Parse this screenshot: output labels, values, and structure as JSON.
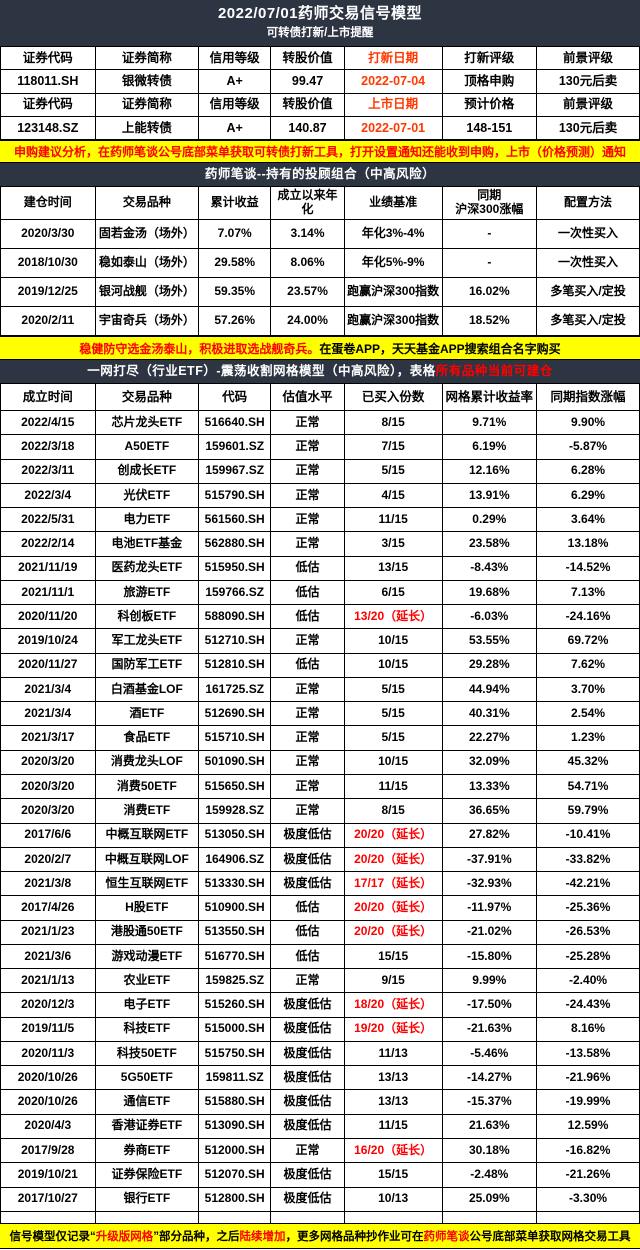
{
  "title_bar": {
    "title": "2022/07/01药师交易信号模型",
    "subtitle": "可转债打新/上市提醒"
  },
  "colors": {
    "dark_header_bg": "#2d3442",
    "banner_bg": "#ffff00",
    "accent_red": "#ff0000",
    "date_red": "#ff3a00"
  },
  "bond_table": {
    "rows": [
      [
        "证券代码",
        "证券简称",
        "信用等级",
        "转股价值",
        {
          "t": "打新日期",
          "c": "#ff3a00"
        },
        "打新评级",
        "前景评级"
      ],
      [
        "118011.SH",
        "银微转债",
        "A+",
        "99.47",
        {
          "t": "2022-07-04",
          "c": "#ff3a00"
        },
        "顶格申购",
        "130元后卖"
      ],
      [
        "证券代码",
        "证券简称",
        "信用等级",
        "转股价值",
        {
          "t": "上市日期",
          "c": "#ff3a00"
        },
        "预计价格",
        "前景评级"
      ],
      [
        "123148.SZ",
        "上能转债",
        "A+",
        "140.87",
        {
          "t": "2022-07-01",
          "c": "#ff3a00"
        },
        "148-151",
        "130元后卖"
      ]
    ]
  },
  "banner_subscribe": {
    "segments": [
      {
        "text": "申购建议分析，在药师笔谈公号底部菜单获取可转债打新工具，打开设置通知还能收到申购，上市（价格预测）通知",
        "color": "#ff0000"
      }
    ]
  },
  "portfolio_section": {
    "title": "药师笔谈--持有的投顾组合（中高风险）",
    "table": {
      "columns": [
        "建仓时间",
        "交易品种",
        "累计收益",
        "成立以来年化",
        "业绩基准",
        "同期\n沪深300涨幅",
        "配置方法"
      ],
      "rows": [
        [
          "2020/3/30",
          "固若金汤（场外）",
          "7.07%",
          "3.14%",
          "年化3%-4%",
          "-",
          "一次性买入"
        ],
        [
          "2018/10/30",
          "稳如泰山（场外）",
          "29.58%",
          "8.06%",
          "年化5%-9%",
          "-",
          "一次性买入"
        ],
        [
          "2019/12/25",
          "银河战舰（场外）",
          "59.35%",
          "23.57%",
          "跑赢沪深300指数",
          "16.02%",
          "多笔买入/定投"
        ],
        [
          "2020/2/11",
          "宇宙奇兵（场外）",
          "57.26%",
          "24.00%",
          "跑赢沪深300指数",
          "18.52%",
          "多笔买入/定投"
        ]
      ]
    }
  },
  "banner_portfolio": {
    "segments": [
      {
        "text": "稳健防守选金汤泰山，积极进取选战舰奇兵。",
        "color": "#ff0000"
      },
      {
        "text": "在蛋卷APP，天天基金APP搜索组合名字购买",
        "color": "#000000"
      }
    ]
  },
  "etf_section": {
    "title_segments": [
      {
        "text": "一网打尽（行业ETF）-震荡收割网格模型（中高风险），表格",
        "color": "#ffffff"
      },
      {
        "text": "所有品种当前可建仓",
        "color": "#ff0000"
      }
    ],
    "table": {
      "columns": [
        "成立时间",
        "交易品种",
        "代码",
        "估值水平",
        "已买入份数",
        "网格累计收益率",
        "同期指数涨幅"
      ],
      "rows": [
        [
          "2022/4/15",
          "芯片龙头ETF",
          "516640.SH",
          "正常",
          "8/15",
          "9.71%",
          "9.90%"
        ],
        [
          "2022/3/18",
          "A50ETF",
          "159601.SZ",
          "正常",
          "7/15",
          "6.19%",
          "-5.87%"
        ],
        [
          "2022/3/11",
          "创成长ETF",
          "159967.SZ",
          "正常",
          "5/15",
          "12.16%",
          "6.28%"
        ],
        [
          "2022/3/4",
          "光伏ETF",
          "515790.SH",
          "正常",
          "4/15",
          "13.91%",
          "6.29%"
        ],
        [
          "2022/5/31",
          "电力ETF",
          "561560.SH",
          "正常",
          "11/15",
          "0.29%",
          "3.64%"
        ],
        [
          "2022/2/14",
          "电池ETF基金",
          "562880.SH",
          "正常",
          "3/15",
          "23.58%",
          "13.18%"
        ],
        [
          "2021/11/19",
          "医药龙头ETF",
          "515950.SH",
          "低估",
          "13/15",
          "-8.43%",
          "-14.52%"
        ],
        [
          "2021/11/1",
          "旅游ETF",
          "159766.SZ",
          "低估",
          "6/15",
          "19.68%",
          "7.13%"
        ],
        [
          "2020/11/20",
          "科创板ETF",
          "588090.SH",
          "低估",
          {
            "t": "13/20（延长）",
            "c": "#ff0000"
          },
          "-6.03%",
          "-24.16%"
        ],
        [
          "2019/10/24",
          "军工龙头ETF",
          "512710.SH",
          "正常",
          "10/15",
          "53.55%",
          "69.72%"
        ],
        [
          "2020/11/27",
          "国防军工ETF",
          "512810.SH",
          "低估",
          "10/15",
          "29.28%",
          "7.62%"
        ],
        [
          "2021/3/4",
          "白酒基金LOF",
          "161725.SZ",
          "正常",
          "5/15",
          "44.94%",
          "3.70%"
        ],
        [
          "2021/3/4",
          "酒ETF",
          "512690.SH",
          "正常",
          "5/15",
          "40.31%",
          "2.54%"
        ],
        [
          "2021/3/17",
          "食品ETF",
          "515710.SH",
          "正常",
          "5/15",
          "22.27%",
          "1.23%"
        ],
        [
          "2020/3/20",
          "消费龙头LOF",
          "501090.SH",
          "正常",
          "10/15",
          "32.09%",
          "45.32%"
        ],
        [
          "2020/3/20",
          "消费50ETF",
          "515650.SH",
          "正常",
          "11/15",
          "13.33%",
          "54.71%"
        ],
        [
          "2020/3/20",
          "消费ETF",
          "159928.SZ",
          "正常",
          "8/15",
          "36.65%",
          "59.79%"
        ],
        [
          "2017/6/6",
          "中概互联网ETF",
          "513050.SH",
          "极度低估",
          {
            "t": "20/20（延长）",
            "c": "#ff0000"
          },
          "27.82%",
          "-10.41%"
        ],
        [
          "2020/2/7",
          "中概互联网LOF",
          "164906.SZ",
          "极度低估",
          {
            "t": "20/20（延长）",
            "c": "#ff0000"
          },
          "-37.91%",
          "-33.82%"
        ],
        [
          "2021/3/8",
          "恒生互联网ETF",
          "513330.SH",
          "极度低估",
          {
            "t": "17/17（延长）",
            "c": "#ff0000"
          },
          "-32.93%",
          "-42.21%"
        ],
        [
          "2017/4/26",
          "H股ETF",
          "510900.SH",
          "低估",
          {
            "t": "20/20（延长）",
            "c": "#ff0000"
          },
          "-11.97%",
          "-25.36%"
        ],
        [
          "2021/1/23",
          "港股通50ETF",
          "513550.SH",
          "低估",
          {
            "t": "20/20（延长）",
            "c": "#ff0000"
          },
          "-21.02%",
          "-26.53%"
        ],
        [
          "2021/3/6",
          "游戏动漫ETF",
          "516770.SH",
          "低估",
          "15/15",
          "-15.80%",
          "-25.28%"
        ],
        [
          "2021/1/13",
          "农业ETF",
          "159825.SZ",
          "正常",
          "9/15",
          "9.99%",
          "-2.40%"
        ],
        [
          "2020/12/3",
          "电子ETF",
          "515260.SH",
          "极度低估",
          {
            "t": "18/20（延长）",
            "c": "#ff0000"
          },
          "-17.50%",
          "-24.43%"
        ],
        [
          "2019/11/5",
          "科技ETF",
          "515000.SH",
          "极度低估",
          {
            "t": "19/20（延长）",
            "c": "#ff0000"
          },
          "-21.63%",
          "8.16%"
        ],
        [
          "2020/11/3",
          "科技50ETF",
          "515750.SH",
          "极度低估",
          "11/13",
          "-5.46%",
          "-13.58%"
        ],
        [
          "2020/10/26",
          "5G50ETF",
          "159811.SZ",
          "极度低估",
          "13/13",
          "-14.27%",
          "-21.96%"
        ],
        [
          "2020/10/26",
          "通信ETF",
          "515880.SH",
          "极度低估",
          "13/13",
          "-15.37%",
          "-19.99%"
        ],
        [
          "2020/4/3",
          "香港证券ETF",
          "513090.SH",
          "极度低估",
          "11/15",
          "21.63%",
          "12.59%"
        ],
        [
          "2017/9/28",
          "券商ETF",
          "512000.SH",
          "正常",
          {
            "t": "16/20（延长）",
            "c": "#ff0000"
          },
          "30.18%",
          "-16.82%"
        ],
        [
          "2019/10/21",
          "证券保险ETF",
          "512070.SH",
          "极度低估",
          "15/15",
          "-2.48%",
          "-21.26%"
        ],
        [
          "2017/10/27",
          "银行ETF",
          "512800.SH",
          "极度低估",
          "10/13",
          "25.09%",
          "-3.30%"
        ]
      ]
    }
  },
  "banner_footer": {
    "segments": [
      {
        "text": "信号模型仅记录“",
        "color": "#000000"
      },
      {
        "text": "升级版网格",
        "color": "#ff0000"
      },
      {
        "text": "”部分品种，之后",
        "color": "#000000"
      },
      {
        "text": "陆续增加",
        "color": "#ff0000"
      },
      {
        "text": "，更多网格品种抄作业可在",
        "color": "#000000"
      },
      {
        "text": "药师笔谈",
        "color": "#ff0000"
      },
      {
        "text": "公号底部菜单获取网格交易工具",
        "color": "#000000"
      }
    ]
  }
}
